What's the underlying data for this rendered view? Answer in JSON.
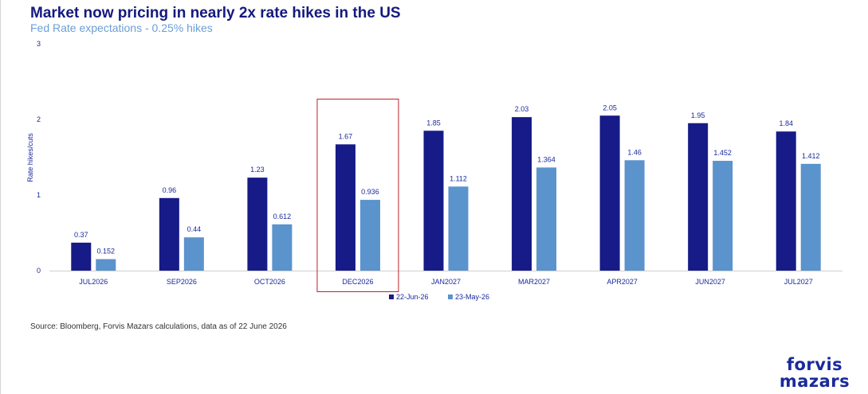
{
  "header": {
    "title": "Market now pricing in nearly 2x rate hikes in the US",
    "subtitle": "Fed Rate expectations - 0.25% hikes"
  },
  "footer": {
    "source": "Source: Bloomberg, Forvis Mazars calculations, data as of 22 June 2026",
    "logo_line1": "forvis",
    "logo_line2": "mazars"
  },
  "chart_data": {
    "type": "bar",
    "title": "Market now pricing in nearly 2x rate hikes in the US",
    "subtitle": "Fed Rate expectations - 0.25% hikes",
    "xlabel": "",
    "ylabel": "Rate hikes/cuts",
    "ylim": [
      0,
      3
    ],
    "yticks": [
      "0",
      "1",
      "2",
      "3"
    ],
    "grid": false,
    "legend_position": "bottom",
    "categories": [
      "JUL2026",
      "SEP2026",
      "OCT2026",
      "DEC2026",
      "JAN2027",
      "MAR2027",
      "APR2027",
      "JUN2027",
      "JUL2027"
    ],
    "series": [
      {
        "name": "22-Jun-26",
        "color": "#161b87",
        "values": [
          0.37,
          0.96,
          1.23,
          1.67,
          1.85,
          2.03,
          2.05,
          1.95,
          1.84
        ],
        "labels": [
          "0.37",
          "0.96",
          "1.23",
          "1.67",
          "1.85",
          "2.03",
          "2.05",
          "1.95",
          "1.84"
        ]
      },
      {
        "name": "23-May-26",
        "color": "#5b93cc",
        "values": [
          0.152,
          0.44,
          0.612,
          0.936,
          1.112,
          1.364,
          1.46,
          1.452,
          1.412
        ],
        "labels": [
          "0.152",
          "0.44",
          "0.612",
          "0.936",
          "1.112",
          "1.364",
          "1.46",
          "1.452",
          "1.412"
        ]
      }
    ],
    "highlight": {
      "category": "DEC2026",
      "color": "#c0202a"
    },
    "label_color": "#1a2a9b",
    "axis_color": "#d0d0d0"
  }
}
